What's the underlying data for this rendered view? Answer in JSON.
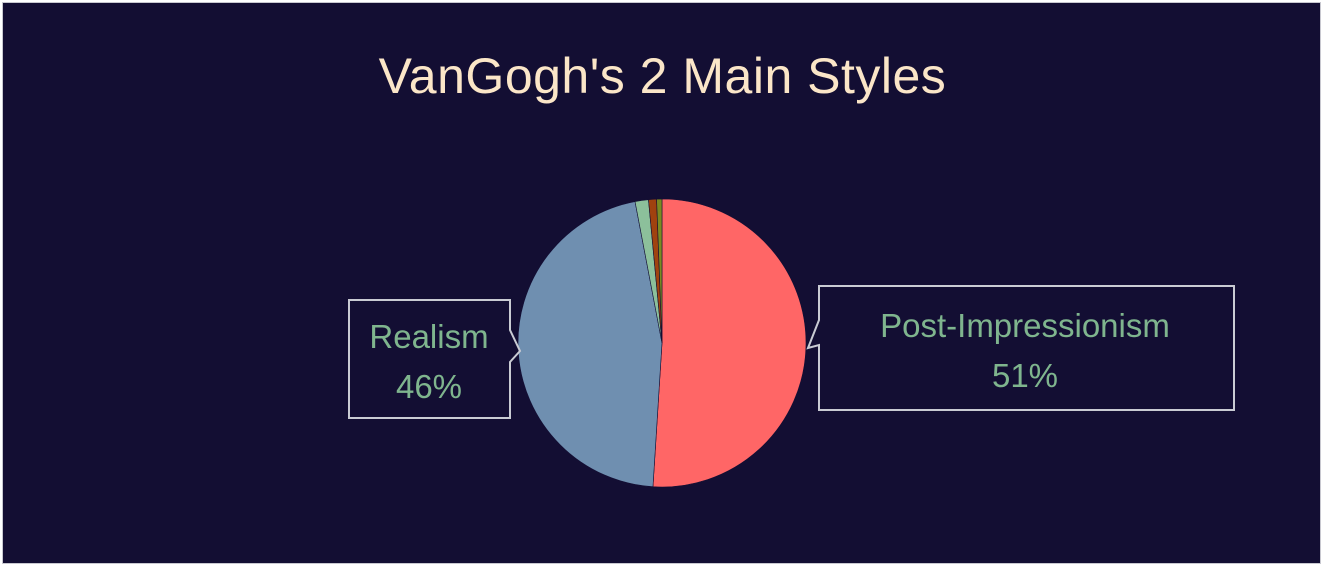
{
  "chart_data": {
    "type": "pie",
    "title": "VanGogh's 2 Main Styles",
    "slices": [
      {
        "label": "Post-Impressionism",
        "value": 51,
        "color": "#ff6666",
        "data_label": "51%"
      },
      {
        "label": "Realism",
        "value": 46,
        "color": "#6f8fb0",
        "data_label": "46%"
      },
      {
        "label": "",
        "value": 1.5,
        "color": "#8cc09b"
      },
      {
        "label": "",
        "value": 0.9,
        "color": "#a0420f"
      },
      {
        "label": "",
        "value": 0.6,
        "color": "#7a8a22"
      }
    ],
    "legend": "none",
    "background_color": "#130e33",
    "title_color": "#fbe6c8",
    "label_color": "#7fb58e"
  }
}
